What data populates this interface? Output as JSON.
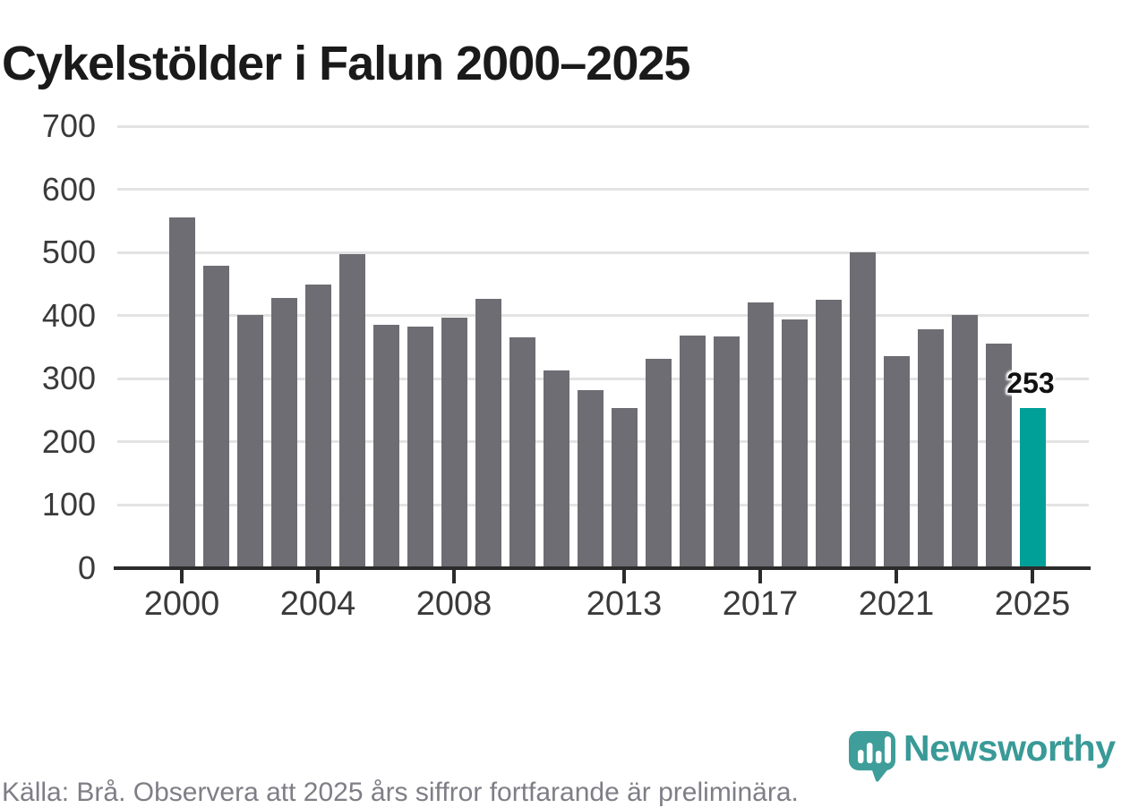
{
  "title": "Cykelstölder i Falun 2000–2025",
  "annotation": {
    "value_label": "253"
  },
  "footer": {
    "source_note": "Källa: Brå. Observera att 2025 års siffror fortfarande är preliminära."
  },
  "branding": {
    "logo_text": "Newsworthy",
    "logo_icon": "newsworthy-chart-pin-icon",
    "brand_color": "#399a97"
  },
  "colors": {
    "background": "#ffffff",
    "bar": "#6e6d73",
    "highlight": "#00a099",
    "grid": "#e3e3e3",
    "axis": "#2b2b2b",
    "axis_text": "#3a3a3a",
    "title_text": "#1a1a1a",
    "footer_text": "#7e7e86"
  },
  "chart_data": {
    "type": "bar",
    "title": "Cykelstölder i Falun 2000–2025",
    "xlabel": "",
    "ylabel": "",
    "categories": [
      2000,
      2001,
      2002,
      2003,
      2004,
      2005,
      2006,
      2007,
      2008,
      2009,
      2010,
      2011,
      2012,
      2013,
      2014,
      2015,
      2016,
      2017,
      2018,
      2019,
      2020,
      2021,
      2022,
      2023,
      2024,
      2025
    ],
    "values": [
      555,
      479,
      401,
      428,
      449,
      497,
      386,
      383,
      397,
      427,
      365,
      313,
      282,
      254,
      332,
      369,
      367,
      421,
      394,
      425,
      500,
      336,
      379,
      401,
      355,
      253
    ],
    "highlight_category": 2025,
    "highlight_value": 253,
    "x_tick_labels": [
      "2000",
      "2004",
      "2008",
      "2013",
      "2017",
      "2021",
      "2025"
    ],
    "y_ticks": [
      0,
      100,
      200,
      300,
      400,
      500,
      600,
      700
    ],
    "ylim": [
      0,
      700
    ],
    "grid": "horizontal",
    "legend": "none"
  }
}
